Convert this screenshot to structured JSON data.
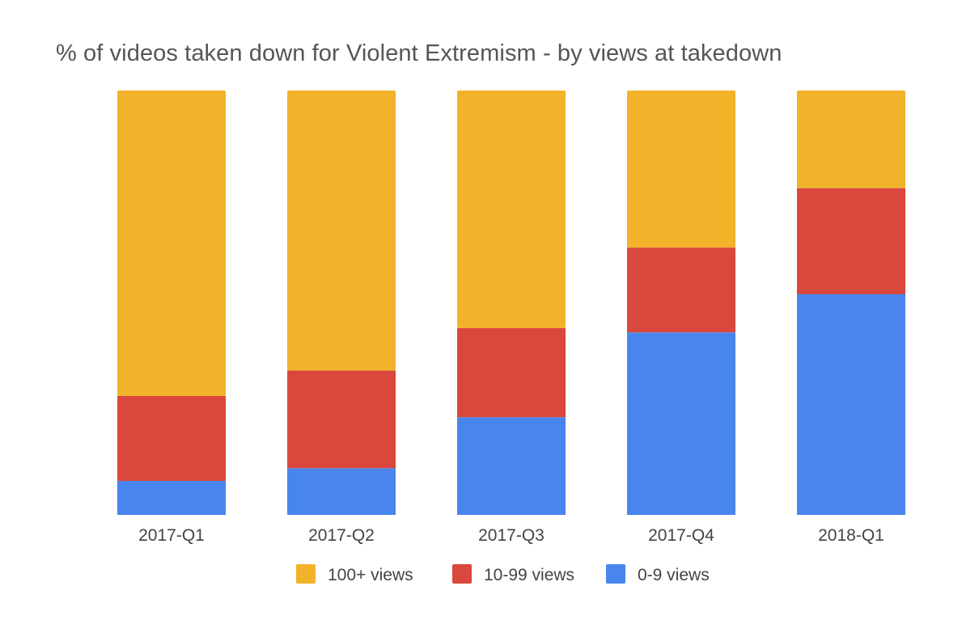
{
  "chart_data": {
    "type": "bar",
    "stacked": true,
    "title": "% of videos taken down for Violent Extremism - by views at takedown",
    "xlabel": "",
    "ylabel": "",
    "ylim": [
      0,
      100
    ],
    "grid": false,
    "legend_position": "bottom",
    "categories": [
      "2017-Q1",
      "2017-Q2",
      "2017-Q3",
      "2017-Q4",
      "2018-Q1"
    ],
    "series": [
      {
        "name": "0-9 views",
        "color": "#4886EE",
        "values": [
          8,
          11,
          23,
          43,
          52
        ]
      },
      {
        "name": "10-99 views",
        "color": "#D9473D",
        "values": [
          20,
          23,
          21,
          20,
          25
        ]
      },
      {
        "name": "100+ views",
        "color": "#F2B22A",
        "values": [
          72,
          66,
          56,
          37,
          23
        ]
      }
    ],
    "legend_order": [
      "100+ views",
      "10-99 views",
      "0-9 views"
    ]
  }
}
